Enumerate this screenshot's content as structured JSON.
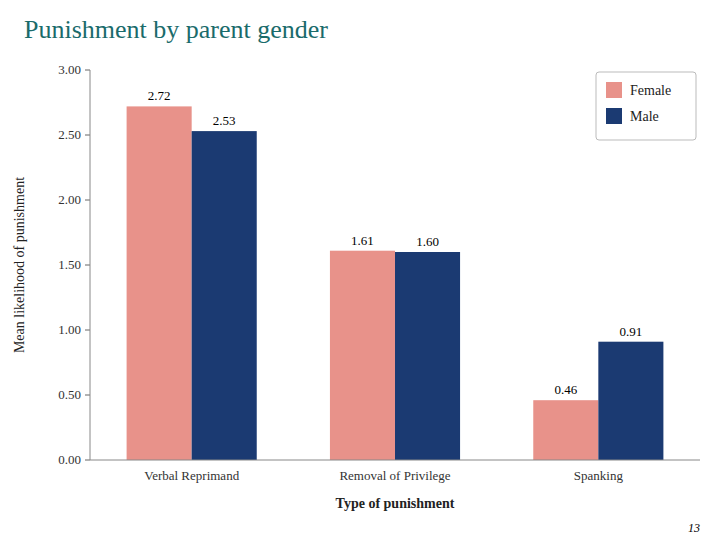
{
  "chart_data": {
    "type": "bar",
    "title": "Punishment by parent gender",
    "xlabel": "Type of punishment",
    "ylabel": "Mean likelihood of punishment",
    "categories": [
      "Verbal Reprimand",
      "Removal of Privilege",
      "Spanking"
    ],
    "series": [
      {
        "name": "Female",
        "color": "#E8928A",
        "values": [
          2.72,
          1.61,
          0.46
        ],
        "value_labels": [
          "2.72",
          "1.61",
          "0.46"
        ]
      },
      {
        "name": "Male",
        "color": "#1B3A72",
        "values": [
          2.53,
          1.6,
          0.91
        ],
        "value_labels": [
          "2.53",
          "1.60",
          "0.91"
        ]
      }
    ],
    "ylim": [
      0.0,
      3.0
    ],
    "yticks": [
      {
        "value": 0.0,
        "label": "0.00"
      },
      {
        "value": 0.5,
        "label": "0.50"
      },
      {
        "value": 1.0,
        "label": "1.00"
      },
      {
        "value": 1.5,
        "label": "1.50"
      },
      {
        "value": 2.0,
        "label": "2.00"
      },
      {
        "value": 2.5,
        "label": "2.50"
      },
      {
        "value": 3.0,
        "label": "3.00"
      }
    ],
    "data_labels": true,
    "legend": "upper right",
    "grid": false,
    "annotations": [
      {
        "text": "13"
      }
    ]
  }
}
